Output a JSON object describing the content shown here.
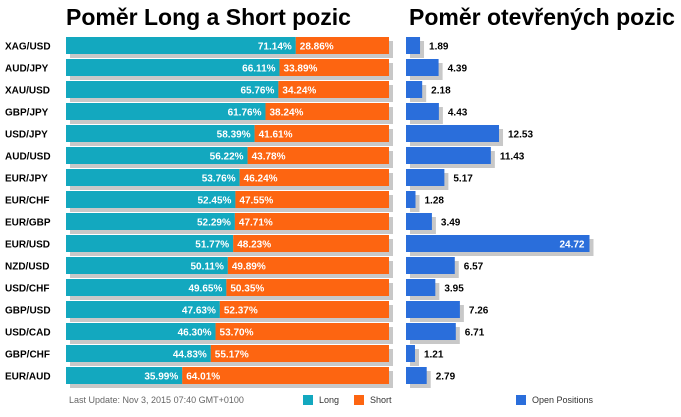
{
  "titles": {
    "left": "Poměr Long a Short pozic",
    "right": "Poměr otevřených pozic"
  },
  "footer": {
    "last_update": "Last Update: Nov 3, 2015 07:40 GMT+0100"
  },
  "legend": {
    "long": "Long",
    "short": "Short",
    "open": "Open Positions"
  },
  "colors": {
    "long": "#13a8bf",
    "short": "#fd6511",
    "open": "#2a6edb",
    "shadow": "#c8c8c8"
  },
  "chart_data": [
    {
      "type": "bar",
      "stacked": true,
      "orientation": "horizontal",
      "title": "Poměr Long a Short pozic",
      "categories": [
        "XAG/USD",
        "AUD/JPY",
        "XAU/USD",
        "GBP/JPY",
        "USD/JPY",
        "AUD/USD",
        "EUR/JPY",
        "EUR/CHF",
        "EUR/GBP",
        "EUR/USD",
        "NZD/USD",
        "USD/CHF",
        "GBP/USD",
        "USD/CAD",
        "GBP/CHF",
        "EUR/AUD"
      ],
      "series": [
        {
          "name": "Long",
          "values": [
            71.14,
            66.11,
            65.76,
            61.76,
            58.39,
            56.22,
            53.76,
            52.45,
            52.29,
            51.77,
            50.11,
            49.65,
            47.63,
            46.3,
            44.83,
            35.99
          ],
          "labels": [
            "71.14%",
            "66.11%",
            "65.76%",
            "61.76%",
            "58.39%",
            "56.22%",
            "53.76%",
            "52.45%",
            "52.29%",
            "51.77%",
            "50.11%",
            "49.65%",
            "47.63%",
            "46.30%",
            "44.83%",
            "35.99%"
          ]
        },
        {
          "name": "Short",
          "values": [
            28.86,
            33.89,
            34.24,
            38.24,
            41.61,
            43.78,
            46.24,
            47.55,
            47.71,
            48.23,
            49.89,
            50.35,
            52.37,
            53.7,
            55.17,
            64.01
          ],
          "labels": [
            "28.86%",
            "33.89%",
            "34.24%",
            "38.24%",
            "41.61%",
            "43.78%",
            "46.24%",
            "47.55%",
            "47.71%",
            "48.23%",
            "49.89%",
            "50.35%",
            "52.37%",
            "53.70%",
            "55.17%",
            "64.01%"
          ]
        }
      ],
      "xlim": [
        0,
        100
      ]
    },
    {
      "type": "bar",
      "orientation": "horizontal",
      "title": "Poměr otevřených pozic",
      "categories": [
        "XAG/USD",
        "AUD/JPY",
        "XAU/USD",
        "GBP/JPY",
        "USD/JPY",
        "AUD/USD",
        "EUR/JPY",
        "EUR/CHF",
        "EUR/GBP",
        "EUR/USD",
        "NZD/USD",
        "USD/CHF",
        "GBP/USD",
        "USD/CAD",
        "GBP/CHF",
        "EUR/AUD"
      ],
      "series": [
        {
          "name": "Open Positions",
          "values": [
            1.89,
            4.39,
            2.18,
            4.43,
            12.53,
            11.43,
            5.17,
            1.28,
            3.49,
            24.72,
            6.57,
            3.95,
            7.26,
            6.71,
            1.21,
            2.79
          ],
          "labels": [
            "1.89",
            "4.39",
            "2.18",
            "4.43",
            "12.53",
            "11.43",
            "5.17",
            "1.28",
            "3.49",
            "24.72",
            "6.57",
            "3.95",
            "7.26",
            "6.71",
            "1.21",
            "2.79"
          ]
        }
      ]
    }
  ]
}
